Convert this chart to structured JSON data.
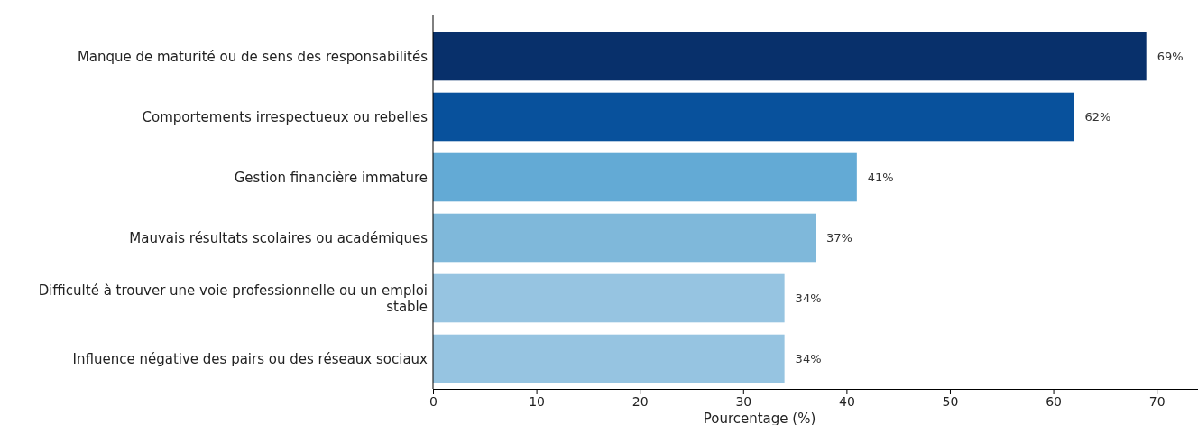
{
  "chart_data": {
    "type": "bar",
    "orientation": "horizontal",
    "xlabel": "Pourcentage (%)",
    "categories": [
      "Manque de maturité ou de sens des responsabilités",
      "Comportements irrespectueux ou rebelles",
      "Gestion financière immature",
      "Mauvais résultats scolaires ou académiques",
      "Difficulté à trouver une voie professionnelle ou un emploi\nstable",
      "Influence négative des pairs ou des réseaux sociaux"
    ],
    "values": [
      69,
      62,
      41,
      37,
      34,
      34
    ],
    "colors": [
      "#08306b",
      "#08519c",
      "#63aad5",
      "#7fb8da",
      "#96c4e1",
      "#96c4e1"
    ],
    "value_labels": [
      "69%",
      "62%",
      "41%",
      "37%",
      "34%",
      "34%"
    ],
    "xlim": [
      0,
      74
    ],
    "xticks": [
      0,
      10,
      20,
      30,
      40,
      50,
      60,
      70
    ]
  }
}
